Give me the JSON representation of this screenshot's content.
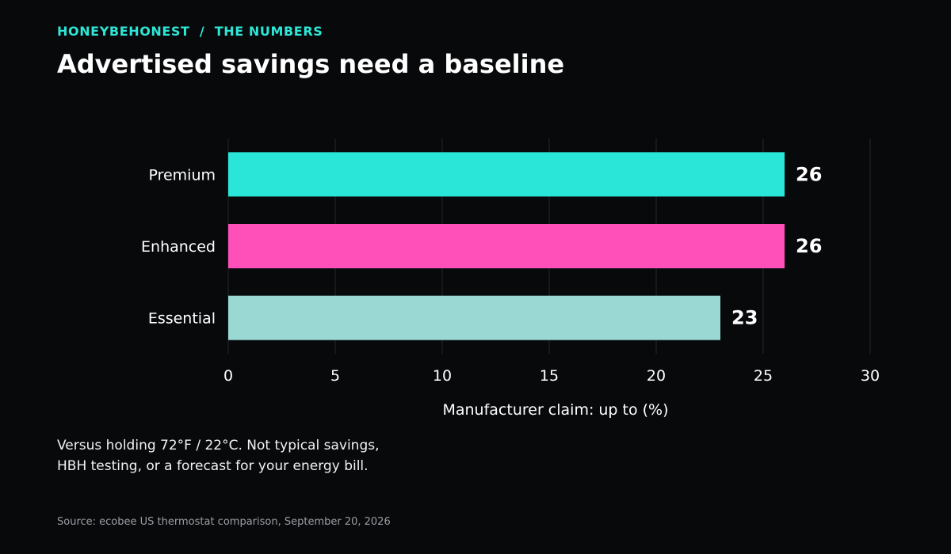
{
  "header": {
    "kicker": "HONEYBEHONEST  /  THE NUMBERS",
    "title": "Advertised savings need a baseline"
  },
  "chart_data": {
    "type": "bar",
    "orientation": "horizontal",
    "categories": [
      "Premium",
      "Enhanced",
      "Essential"
    ],
    "values": [
      26,
      26,
      23
    ],
    "colors": [
      "#2ae6d8",
      "#ff4fb9",
      "#9ad8d4"
    ],
    "xlabel": "Manufacturer claim: up to (%)",
    "xlim": [
      0,
      30
    ],
    "xticks": [
      0,
      5,
      10,
      15,
      20,
      25,
      30
    ],
    "grid": true,
    "data_labels": true
  },
  "footnote": {
    "lines": [
      "Versus holding 72°F / 22°C. Not typical savings,",
      "HBH testing, or a forecast for your energy bill."
    ]
  },
  "source": "Source: ecobee US thermostat comparison, September 20, 2026"
}
